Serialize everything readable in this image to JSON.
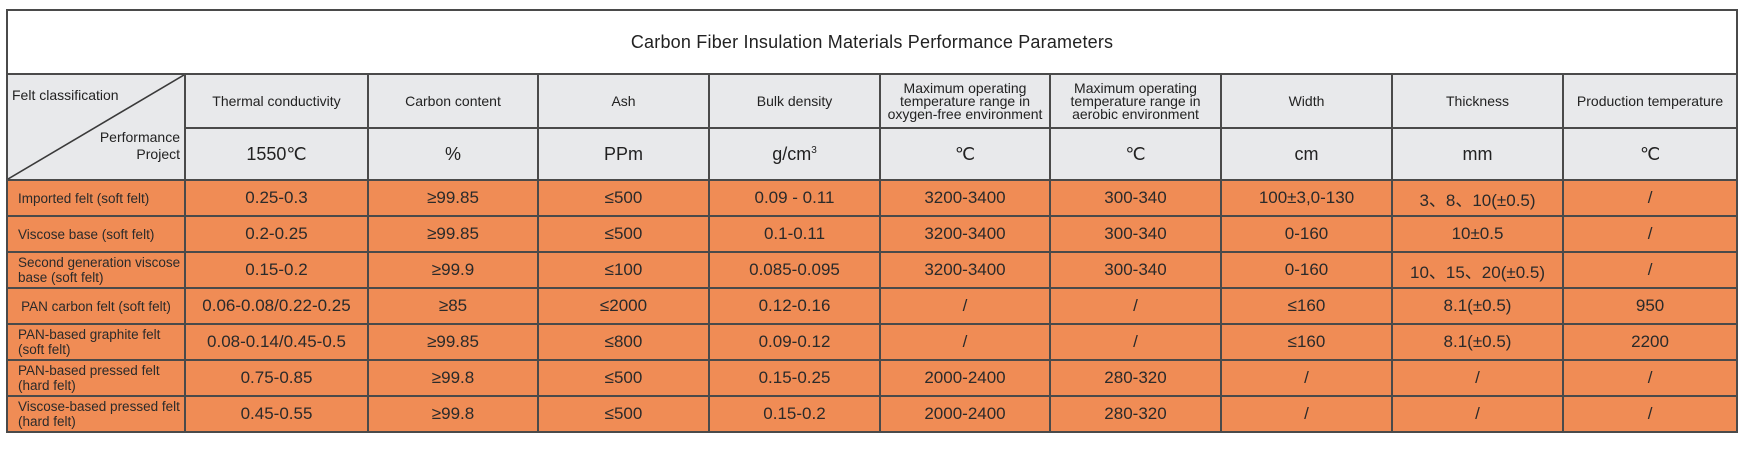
{
  "title": "Carbon Fiber Insulation Materials Performance Parameters",
  "corner": {
    "top_left": "Felt classification",
    "bottom_right_line1": "Performance",
    "bottom_right_line2": "Project"
  },
  "columns": [
    "Thermal conductivity",
    "Carbon content",
    "Ash",
    "Bulk density",
    "Maximum operating temperature range in oxygen-free environment",
    "Maximum operating temperature range in aerobic environment",
    "Width",
    "Thickness",
    "Production temperature"
  ],
  "units": [
    "1550℃",
    "%",
    "PPm",
    "g/cm",
    "℃",
    "℃",
    "cm",
    "mm",
    "℃"
  ],
  "units_superscript": "3",
  "rows": [
    {
      "name": "Imported felt (soft felt)",
      "values": [
        "0.25-0.3",
        "≥99.85",
        "≤500",
        "0.09 - 0.11",
        "3200-3400",
        "300-340",
        "100±3,0-130",
        "3、8、10(±0.5)",
        "/"
      ]
    },
    {
      "name": "Viscose base (soft felt)",
      "values": [
        "0.2-0.25",
        "≥99.85",
        "≤500",
        "0.1-0.11",
        "3200-3400",
        "300-340",
        "0-160",
        "10±0.5",
        "/"
      ]
    },
    {
      "name": "Second generation viscose base (soft felt)",
      "values": [
        "0.15-0.2",
        "≥99.9",
        "≤100",
        "0.085-0.095",
        "3200-3400",
        "300-340",
        "0-160",
        "10、15、20(±0.5)",
        "/"
      ]
    },
    {
      "name": "PAN carbon felt (soft felt)",
      "values": [
        "0.06-0.08/0.22-0.25",
        "≥85",
        "≤2000",
        "0.12-0.16",
        "/",
        "/",
        "≤160",
        "8.1(±0.5)",
        "950"
      ]
    },
    {
      "name": "PAN-based graphite felt (soft felt)",
      "values": [
        "0.08-0.14/0.45-0.5",
        "≥99.85",
        "≤800",
        "0.09-0.12",
        "/",
        "/",
        "≤160",
        "8.1(±0.5)",
        "2200"
      ]
    },
    {
      "name": "PAN-based pressed felt (hard felt)",
      "values": [
        "0.75-0.85",
        "≥99.8",
        "≤500",
        "0.15-0.25",
        "2000-2400",
        "280-320",
        "/",
        "/",
        "/"
      ]
    },
    {
      "name": "Viscose-based pressed felt (hard felt)",
      "values": [
        "0.45-0.55",
        "≥99.8",
        "≤500",
        "0.15-0.2",
        "2000-2400",
        "280-320",
        "/",
        "/",
        "/"
      ]
    }
  ]
}
